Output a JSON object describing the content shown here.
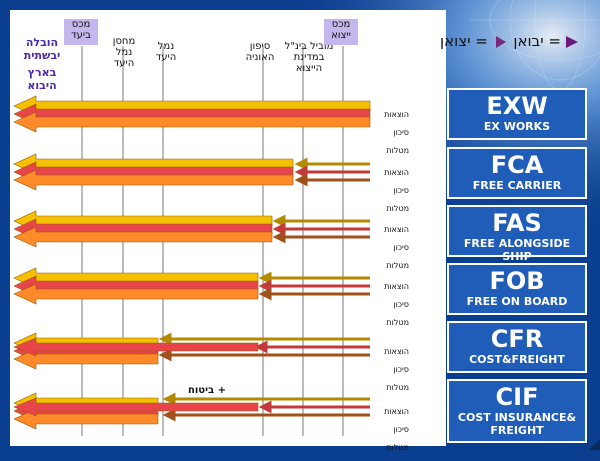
{
  "header": {
    "customs_dest": "מכס\nביעד",
    "warehouse_dest": "מחסן\nנמל\nהיעד",
    "port_dest": "נמל\nהיעד",
    "ship_side": "סיפון\nהאוניה",
    "intl_carrier": "מוביל בינ\"ל\nבמדינת\nהייצוא",
    "customs_export": "מכס\nייצוא",
    "land_transport": "הובלה\nיבשתית",
    "land_import": "בארץ\nהיבוא"
  },
  "legend": {
    "exporter": "= יצואן",
    "importer": "= יבואן",
    "exporter_color": "#7a2a7a",
    "importer_color": "#6a1a7a"
  },
  "row_labels": [
    "הוצאות",
    "סיכון",
    "מטלות"
  ],
  "insurance_label": "+ ביטוח",
  "terms": [
    {
      "code": "EXW",
      "name": "EX WORKS"
    },
    {
      "code": "FCA",
      "name": "FREE CARRIER"
    },
    {
      "code": "FAS",
      "name": "FREE ALONGSIDE SHIP"
    },
    {
      "code": "FOB",
      "name": "FREE ON BOARD"
    },
    {
      "code": "CFR",
      "name": "COST&FREIGHT"
    },
    {
      "code": "CIF",
      "name": "COST INSURANCE&\nFREIGHT"
    }
  ],
  "colors": {
    "cost_arrow": "#f5c000",
    "risk_arrow": "#e8454a",
    "task_arrow": "#ff8a2a",
    "exporter_line": "#b38a00",
    "exporter_risk": "#c23a3a",
    "exporter_task": "#a0501a",
    "panel_bg": "#ffffff",
    "slide_bg": "#0a3f8f",
    "term_box": "#1f5db8",
    "header_box": "#c6b6ee"
  }
}
